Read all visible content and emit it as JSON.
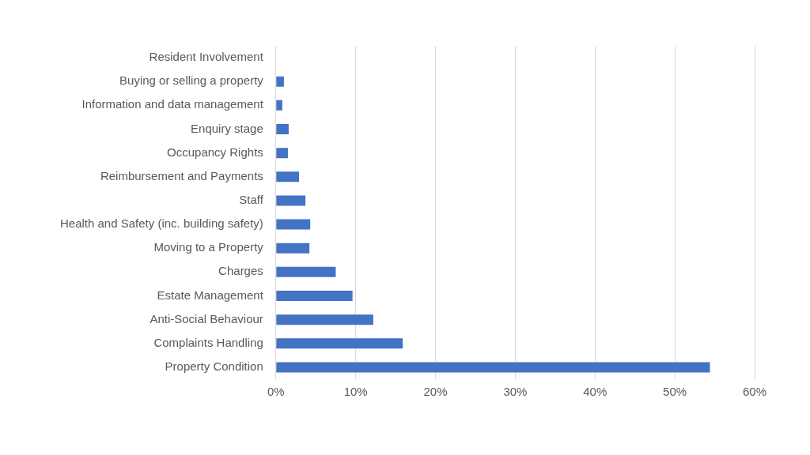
{
  "chart_data": {
    "type": "bar",
    "orientation": "horizontal",
    "categories": [
      "Resident Involvement",
      "Buying or selling a property",
      "Information and data management",
      "Enquiry stage",
      "Occupancy Rights",
      "Reimbursement and Payments",
      "Staff",
      "Health and Safety (inc. building safety)",
      "Moving to a Property",
      "Charges",
      "Estate Management",
      "Anti-Social Behaviour",
      "Complaints Handling",
      "Property Condition"
    ],
    "values": [
      0,
      1.0,
      0.8,
      1.6,
      1.5,
      2.9,
      3.7,
      4.3,
      4.2,
      7.5,
      9.6,
      12.2,
      15.9,
      54.4
    ],
    "color": "#4472c4",
    "xlim": [
      0,
      60
    ],
    "xticks": [
      {
        "value": 0,
        "label": "0%"
      },
      {
        "value": 10,
        "label": "10%"
      },
      {
        "value": 20,
        "label": "20%"
      },
      {
        "value": 30,
        "label": "30%"
      },
      {
        "value": 40,
        "label": "40%"
      },
      {
        "value": 50,
        "label": "50%"
      },
      {
        "value": 60,
        "label": "60%"
      }
    ],
    "grid": true
  }
}
